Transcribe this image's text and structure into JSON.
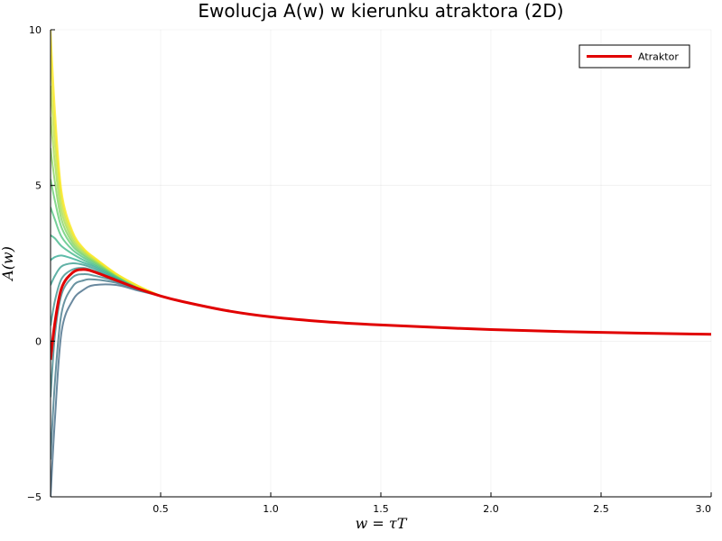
{
  "chart_data": {
    "type": "line",
    "title": "Ewolucja A(w) w kierunku atraktora (2D)",
    "xlabel": "w = τT",
    "ylabel": "A(w)",
    "xlim": [
      0.0,
      3.0
    ],
    "ylim": [
      -5,
      10
    ],
    "xticks": [
      0.5,
      1.0,
      1.5,
      2.0,
      2.5,
      3.0
    ],
    "xtick_labels": [
      "0.5",
      "1.0",
      "1.5",
      "2.0",
      "2.5",
      "3.0"
    ],
    "yticks": [
      -5,
      0,
      5,
      10
    ],
    "ytick_labels": [
      "−5",
      "0",
      "5",
      "10"
    ],
    "grid": true,
    "legend": {
      "placement": "top-right",
      "entries": [
        "Atraktor"
      ]
    },
    "attractor": {
      "name": "Atraktor",
      "color": "#e10000",
      "x": [
        0.0,
        0.02,
        0.05,
        0.1,
        0.15,
        0.2,
        0.3,
        0.4,
        0.5,
        0.6,
        0.8,
        1.0,
        1.25,
        1.5,
        2.0,
        2.5,
        3.0
      ],
      "y": [
        -0.6,
        0.6,
        1.7,
        2.2,
        2.3,
        2.22,
        1.95,
        1.68,
        1.45,
        1.27,
        0.98,
        0.78,
        0.62,
        0.52,
        0.37,
        0.28,
        0.22
      ]
    },
    "trajectories": {
      "count": 14,
      "colormap": "viridis",
      "x": [
        0.0,
        0.02,
        0.05,
        0.1,
        0.15,
        0.2,
        0.3,
        0.4,
        0.5
      ],
      "series": [
        {
          "y": [
            -5.0,
            -2.5,
            0.3,
            1.3,
            1.65,
            1.8,
            1.8,
            1.62,
            1.45
          ]
        },
        {
          "y": [
            -3.8,
            -1.3,
            0.9,
            1.75,
            1.95,
            1.98,
            1.87,
            1.65,
            1.45
          ]
        },
        {
          "y": [
            -1.8,
            0.2,
            1.5,
            2.05,
            2.15,
            2.1,
            1.92,
            1.67,
            1.45
          ]
        },
        {
          "y": [
            0.5,
            1.3,
            2.0,
            2.3,
            2.35,
            2.25,
            1.98,
            1.69,
            1.45
          ]
        },
        {
          "y": [
            1.8,
            2.1,
            2.4,
            2.5,
            2.45,
            2.32,
            2.0,
            1.7,
            1.45
          ]
        },
        {
          "y": [
            2.6,
            2.7,
            2.75,
            2.65,
            2.52,
            2.38,
            2.03,
            1.71,
            1.45
          ]
        },
        {
          "y": [
            3.4,
            3.3,
            3.05,
            2.8,
            2.6,
            2.43,
            2.06,
            1.72,
            1.45
          ]
        },
        {
          "y": [
            4.3,
            3.9,
            3.35,
            2.93,
            2.68,
            2.48,
            2.08,
            1.73,
            1.45
          ]
        },
        {
          "y": [
            5.2,
            4.5,
            3.65,
            3.05,
            2.75,
            2.53,
            2.1,
            1.74,
            1.45
          ]
        },
        {
          "y": [
            6.2,
            5.1,
            3.9,
            3.15,
            2.8,
            2.56,
            2.12,
            1.75,
            1.45
          ]
        },
        {
          "y": [
            7.2,
            5.7,
            4.15,
            3.25,
            2.86,
            2.6,
            2.13,
            1.75,
            1.45
          ]
        },
        {
          "y": [
            8.2,
            6.3,
            4.4,
            3.35,
            2.9,
            2.63,
            2.14,
            1.76,
            1.45
          ]
        },
        {
          "y": [
            9.2,
            6.9,
            4.62,
            3.45,
            2.95,
            2.66,
            2.15,
            1.76,
            1.45
          ]
        },
        {
          "y": [
            10.0,
            7.4,
            4.8,
            3.52,
            2.98,
            2.68,
            2.16,
            1.77,
            1.45
          ]
        }
      ]
    }
  }
}
